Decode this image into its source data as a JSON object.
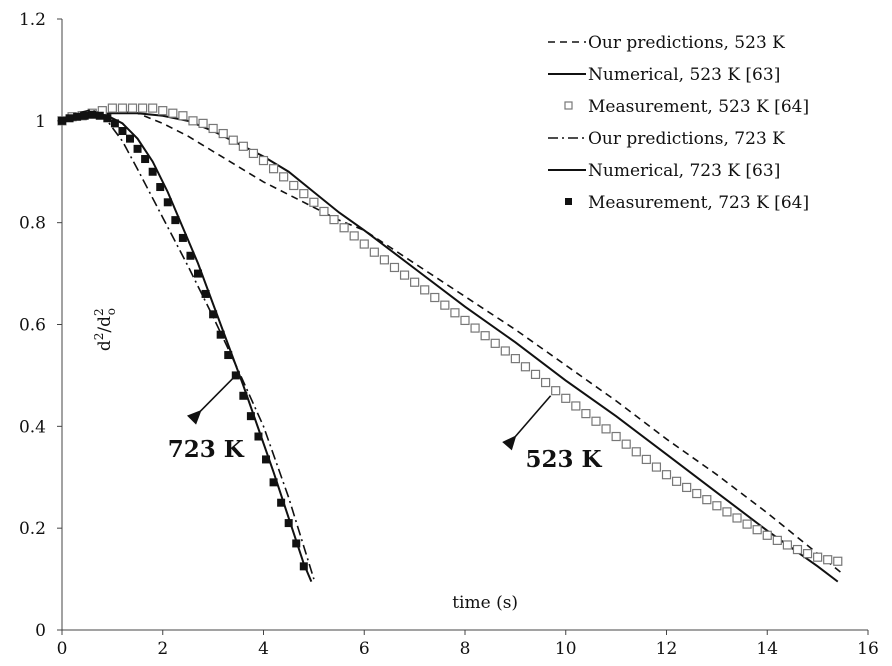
{
  "chart_data": {
    "type": "line",
    "title": "",
    "xlabel": "time (s)",
    "ylabel_base": "d",
    "ylabel_sup": "2",
    "ylabel_div": "/d",
    "ylabel_sub": "o",
    "xlim": [
      0,
      16
    ],
    "ylim": [
      0,
      1.2
    ],
    "xticks": [
      0,
      2,
      4,
      6,
      8,
      10,
      12,
      14,
      16
    ],
    "yticks": [
      0,
      0.2,
      0.4,
      0.6,
      0.8,
      1,
      1.2
    ],
    "grid": false,
    "legend_position": "top-right",
    "series": [
      {
        "name": "Our predictions, 523 K",
        "style": "dashed",
        "color": "#111111",
        "x": [
          0,
          0.5,
          1.0,
          1.5,
          2.0,
          2.5,
          3.0,
          3.5,
          4.0,
          4.5,
          5.0,
          5.5,
          6.0,
          7.0,
          8.0,
          9.0,
          10.0,
          11.0,
          12.0,
          13.0,
          14.0,
          15.0,
          15.5
        ],
        "y": [
          1.0,
          1.015,
          1.02,
          1.015,
          0.995,
          0.97,
          0.94,
          0.91,
          0.88,
          0.855,
          0.83,
          0.805,
          0.785,
          0.72,
          0.655,
          0.59,
          0.52,
          0.45,
          0.375,
          0.305,
          0.23,
          0.15,
          0.11
        ]
      },
      {
        "name": "Numerical, 523 K [63]",
        "style": "solid",
        "color": "#111111",
        "x": [
          0,
          0.5,
          1.0,
          1.5,
          2.0,
          2.5,
          3.0,
          3.5,
          4.0,
          4.5,
          5.0,
          5.5,
          6.0,
          7.0,
          8.0,
          9.0,
          10.0,
          11.0,
          12.0,
          13.0,
          14.0,
          15.0,
          15.4
        ],
        "y": [
          1.0,
          1.012,
          1.015,
          1.015,
          1.01,
          1.0,
          0.98,
          0.955,
          0.93,
          0.9,
          0.86,
          0.82,
          0.785,
          0.71,
          0.635,
          0.565,
          0.49,
          0.42,
          0.345,
          0.27,
          0.195,
          0.125,
          0.095
        ]
      },
      {
        "name": "Measurement, 523 K [64]",
        "style": "open-square",
        "color": "#777777",
        "x": [
          0,
          0.2,
          0.4,
          0.6,
          0.8,
          1.0,
          1.2,
          1.4,
          1.6,
          1.8,
          2.0,
          2.2,
          2.4,
          2.6,
          2.8,
          3.0,
          3.2,
          3.4,
          3.6,
          3.8,
          4.0,
          4.2,
          4.4,
          4.6,
          4.8,
          5.0,
          5.2,
          5.4,
          5.6,
          5.8,
          6.0,
          6.2,
          6.4,
          6.6,
          6.8,
          7.0,
          7.2,
          7.4,
          7.6,
          7.8,
          8.0,
          8.2,
          8.4,
          8.6,
          8.8,
          9.0,
          9.2,
          9.4,
          9.6,
          9.8,
          10.0,
          10.2,
          10.4,
          10.6,
          10.8,
          11.0,
          11.2,
          11.4,
          11.6,
          11.8,
          12.0,
          12.2,
          12.4,
          12.6,
          12.8,
          13.0,
          13.2,
          13.4,
          13.6,
          13.8,
          14.0,
          14.2,
          14.4,
          14.6,
          14.8,
          15.0,
          15.2,
          15.4
        ],
        "y": [
          1.0,
          1.008,
          1.01,
          1.015,
          1.02,
          1.025,
          1.025,
          1.025,
          1.025,
          1.025,
          1.02,
          1.015,
          1.01,
          1.0,
          0.995,
          0.985,
          0.975,
          0.962,
          0.95,
          0.936,
          0.922,
          0.906,
          0.89,
          0.873,
          0.857,
          0.84,
          0.822,
          0.806,
          0.79,
          0.774,
          0.758,
          0.742,
          0.727,
          0.712,
          0.697,
          0.683,
          0.668,
          0.653,
          0.638,
          0.623,
          0.608,
          0.593,
          0.578,
          0.563,
          0.548,
          0.533,
          0.517,
          0.502,
          0.486,
          0.47,
          0.455,
          0.44,
          0.425,
          0.41,
          0.395,
          0.38,
          0.365,
          0.35,
          0.335,
          0.32,
          0.305,
          0.292,
          0.28,
          0.268,
          0.256,
          0.244,
          0.232,
          0.22,
          0.208,
          0.197,
          0.186,
          0.176,
          0.167,
          0.158,
          0.15,
          0.143,
          0.138,
          0.135
        ]
      },
      {
        "name": "Our predictions, 723 K",
        "style": "dash-dot",
        "color": "#111111",
        "x": [
          0,
          0.3,
          0.6,
          0.9,
          1.2,
          1.5,
          2.0,
          2.5,
          3.0,
          3.5,
          4.0,
          4.5,
          5.0
        ],
        "y": [
          1.0,
          1.015,
          1.022,
          1.0,
          0.96,
          0.905,
          0.81,
          0.715,
          0.615,
          0.51,
          0.4,
          0.26,
          0.1
        ]
      },
      {
        "name": "Numerical, 723 K [63]",
        "style": "solid",
        "color": "#111111",
        "x": [
          0,
          0.3,
          0.6,
          0.9,
          1.2,
          1.5,
          1.8,
          2.1,
          2.4,
          2.7,
          3.0,
          3.3,
          3.6,
          3.9,
          4.2,
          4.5,
          4.8,
          4.95
        ],
        "y": [
          1.0,
          1.01,
          1.015,
          1.01,
          0.995,
          0.965,
          0.92,
          0.86,
          0.79,
          0.72,
          0.64,
          0.56,
          0.48,
          0.395,
          0.31,
          0.22,
          0.13,
          0.095
        ]
      },
      {
        "name": "Measurement, 723 K [64]",
        "style": "filled-square",
        "color": "#111111",
        "x": [
          0,
          0.15,
          0.3,
          0.45,
          0.6,
          0.75,
          0.9,
          1.05,
          1.2,
          1.35,
          1.5,
          1.65,
          1.8,
          1.95,
          2.1,
          2.25,
          2.4,
          2.55,
          2.7,
          2.85,
          3.0,
          3.15,
          3.3,
          3.45,
          3.6,
          3.75,
          3.9,
          4.05,
          4.2,
          4.35,
          4.5,
          4.65,
          4.8
        ],
        "y": [
          1.0,
          1.005,
          1.008,
          1.01,
          1.012,
          1.01,
          1.005,
          0.995,
          0.98,
          0.965,
          0.945,
          0.925,
          0.9,
          0.87,
          0.84,
          0.805,
          0.77,
          0.735,
          0.7,
          0.66,
          0.62,
          0.58,
          0.54,
          0.5,
          0.46,
          0.42,
          0.38,
          0.335,
          0.29,
          0.25,
          0.21,
          0.17,
          0.125
        ]
      }
    ],
    "annotations": [
      {
        "text": "723 K",
        "x": 2.1,
        "y": 0.34,
        "arrow_from": [
          2.75,
          0.43
        ],
        "arrow_to": [
          3.45,
          0.5
        ]
      },
      {
        "text": "523 K",
        "x": 9.2,
        "y": 0.32,
        "arrow_from": [
          9.0,
          0.38
        ],
        "arrow_to": [
          9.7,
          0.46
        ]
      }
    ]
  }
}
